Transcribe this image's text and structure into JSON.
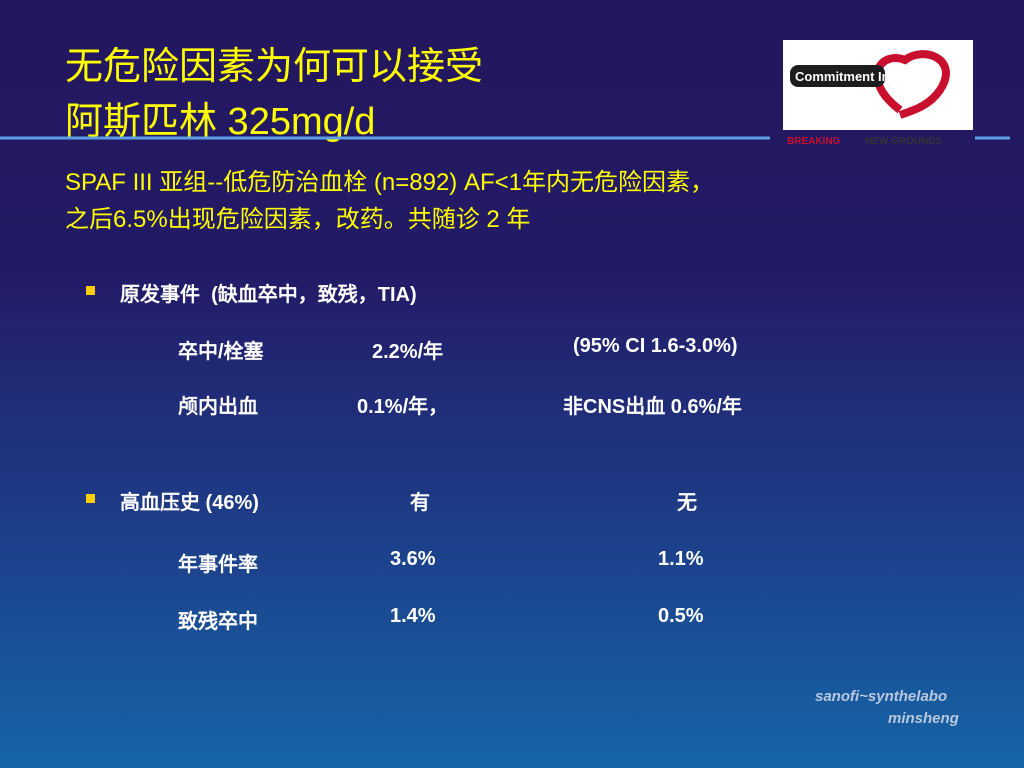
{
  "header": {
    "title_lines": [
      "无危险因素为何可以接受",
      "阿斯匹林 325mg/d"
    ],
    "logo": {
      "text": "Commitment In",
      "tagline_1": "BREAKING",
      "tagline_2": "NEW GROUNDS"
    }
  },
  "subtitle_lines": [
    "SPAF III 亚组--低危防治血栓 (n=892) AF<1年内无危险因素，",
    "之后6.5%出现危险因素，改药。共随诊 2 年"
  ],
  "sections": [
    {
      "bullet": "原发事件  (缺血卒中，致残，TIA)",
      "header_cells": [],
      "rows": [
        [
          "卒中/栓塞",
          "2.2%/年",
          "(95% CI 1.6-3.0%)"
        ],
        [
          "颅内出血",
          "0.1%/年，",
          "非CNS出血 0.6%/年"
        ]
      ]
    },
    {
      "bullet": "高血压史 (46%)",
      "header_cells": [
        "有",
        "无"
      ],
      "rows": [
        [
          "年事件率",
          "3.6%",
          "1.1%"
        ],
        [
          "致残卒中",
          "1.4%",
          "0.5%"
        ]
      ]
    }
  ],
  "footer": {
    "company": "sanofi~synthelabo",
    "partner": "minsheng"
  }
}
